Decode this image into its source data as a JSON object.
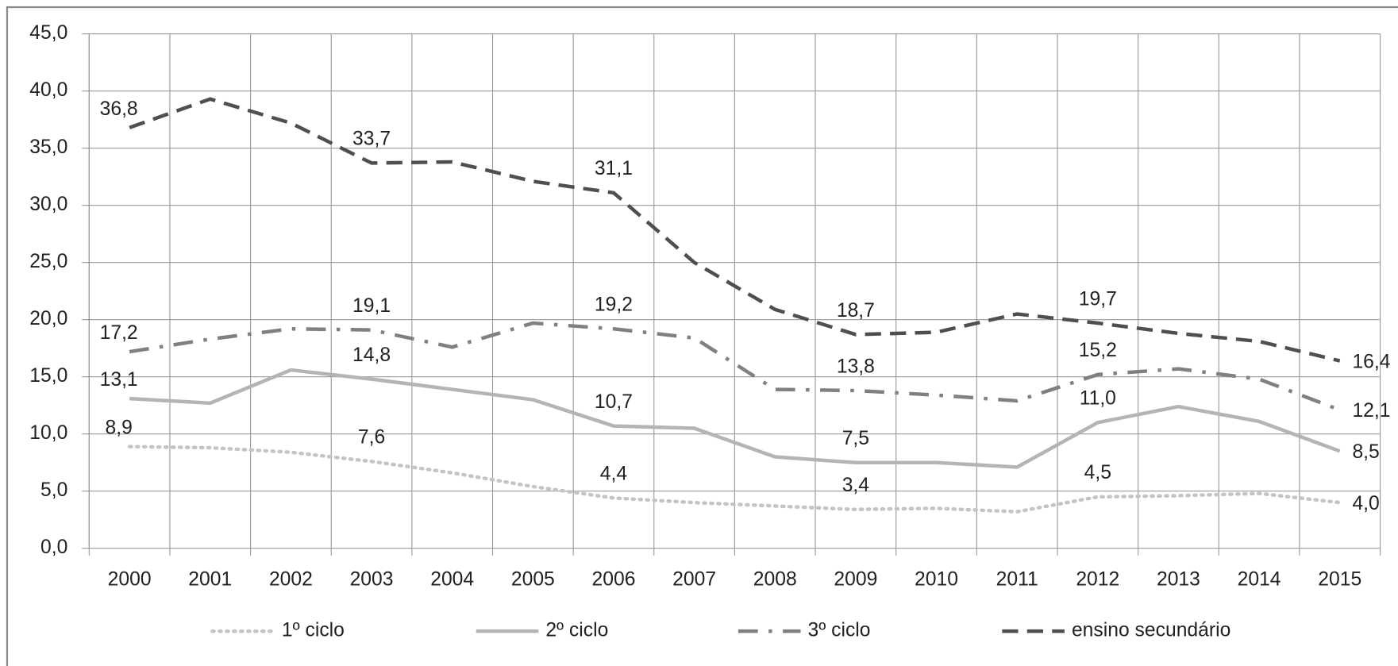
{
  "chart_data": {
    "type": "line",
    "categories": [
      "2000",
      "2001",
      "2002",
      "2003",
      "2004",
      "2005",
      "2006",
      "2007",
      "2008",
      "2009",
      "2010",
      "2011",
      "2012",
      "2013",
      "2014",
      "2015"
    ],
    "ylim": [
      0,
      45
    ],
    "yticks": [
      {
        "value": 0,
        "label": "0,0"
      },
      {
        "value": 5,
        "label": "5,0"
      },
      {
        "value": 10,
        "label": "10,0"
      },
      {
        "value": 15,
        "label": "15,0"
      },
      {
        "value": 20,
        "label": "20,0"
      },
      {
        "value": 25,
        "label": "25,0"
      },
      {
        "value": 30,
        "label": "30,0"
      },
      {
        "value": 35,
        "label": "35,0"
      },
      {
        "value": 40,
        "label": "40,0"
      },
      {
        "value": 45,
        "label": "45,0"
      }
    ],
    "grid": true,
    "legend": "bottom",
    "series": [
      {
        "name": "1º ciclo",
        "color": "#c4c4c4",
        "style": "dotted",
        "values": [
          8.9,
          8.8,
          8.4,
          7.6,
          6.6,
          5.4,
          4.4,
          4.0,
          3.7,
          3.4,
          3.5,
          3.2,
          4.5,
          4.6,
          4.8,
          4.0
        ],
        "value_labels": [
          "8,9",
          null,
          null,
          "7,6",
          null,
          null,
          "4,4",
          null,
          null,
          "3,4",
          null,
          null,
          "4,5",
          null,
          null,
          "4,0"
        ]
      },
      {
        "name": "2º ciclo",
        "color": "#b4b4b4",
        "style": "solid",
        "values": [
          13.1,
          12.7,
          15.6,
          14.8,
          13.9,
          13.0,
          10.7,
          10.5,
          8.0,
          7.5,
          7.5,
          7.1,
          11.0,
          12.4,
          11.1,
          8.5
        ],
        "value_labels": [
          "13,1",
          null,
          null,
          "14,8",
          null,
          null,
          "10,7",
          null,
          null,
          "7,5",
          null,
          null,
          "11,0",
          null,
          null,
          "8,5"
        ]
      },
      {
        "name": "3º ciclo",
        "color": "#808080",
        "style": "dashdot",
        "values": [
          17.2,
          18.3,
          19.2,
          19.1,
          17.6,
          19.7,
          19.2,
          18.4,
          13.9,
          13.8,
          13.4,
          12.9,
          15.2,
          15.7,
          14.8,
          12.1
        ],
        "value_labels": [
          "17,2",
          null,
          null,
          "19,1",
          null,
          null,
          "19,2",
          null,
          null,
          "13,8",
          null,
          null,
          "15,2",
          null,
          null,
          "12,1"
        ]
      },
      {
        "name": "ensino secundário",
        "color": "#4f4f4f",
        "style": "dashed",
        "values": [
          36.8,
          39.3,
          37.2,
          33.7,
          33.8,
          32.1,
          31.1,
          25.0,
          20.9,
          18.7,
          18.9,
          20.5,
          19.7,
          18.8,
          18.1,
          16.4
        ],
        "value_labels": [
          "36,8",
          null,
          null,
          "33,7",
          null,
          null,
          "31,1",
          null,
          null,
          "18,7",
          null,
          null,
          "19,7",
          null,
          null,
          "16,4"
        ]
      }
    ]
  }
}
